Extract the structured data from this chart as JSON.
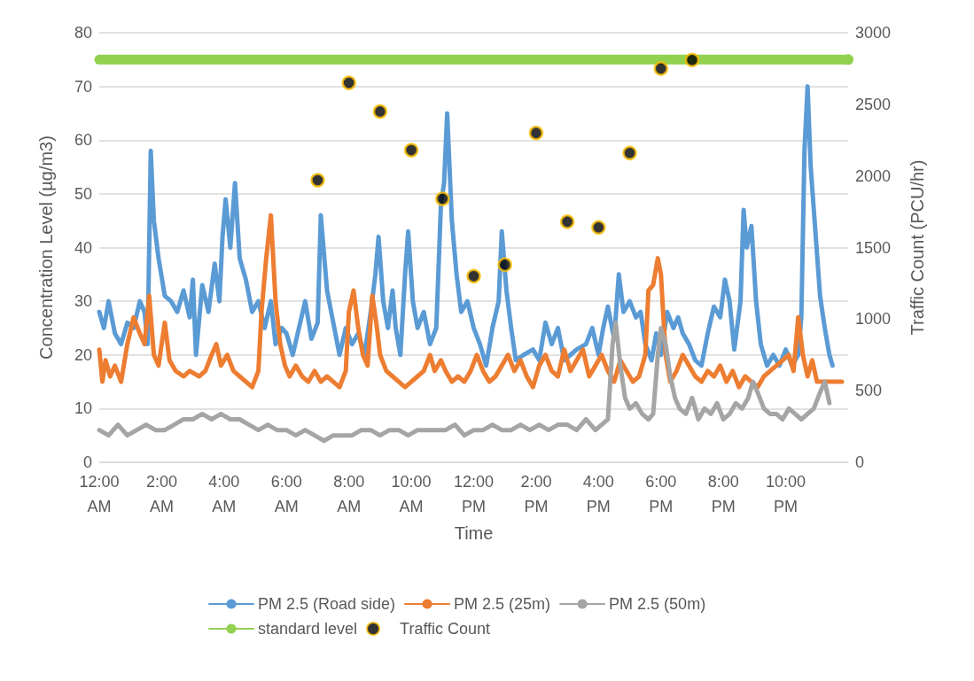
{
  "chart_data": {
    "type": "line",
    "xlabel": "Time",
    "ylabel": "Concentration Level (µg/m3)",
    "y2label": "Traffic Count (PCU/hr)",
    "xlim": [
      0,
      24
    ],
    "xticks": [
      {
        "value": 0,
        "label": "12:00 AM"
      },
      {
        "value": 2,
        "label": "2:00 AM"
      },
      {
        "value": 4,
        "label": "4:00 AM"
      },
      {
        "value": 6,
        "label": "6:00 AM"
      },
      {
        "value": 8,
        "label": "8:00 AM"
      },
      {
        "value": 10,
        "label": "10:00 AM"
      },
      {
        "value": 12,
        "label": "12:00 PM"
      },
      {
        "value": 14,
        "label": "2:00 PM"
      },
      {
        "value": 16,
        "label": "4:00 PM"
      },
      {
        "value": 18,
        "label": "6:00 PM"
      },
      {
        "value": 20,
        "label": "8:00 PM"
      },
      {
        "value": 22,
        "label": "10:00 PM"
      }
    ],
    "ylim": [
      0,
      80
    ],
    "yticks": [
      0,
      10,
      20,
      30,
      40,
      50,
      60,
      70,
      80
    ],
    "y2lim": [
      0,
      3000
    ],
    "y2ticks": [
      0,
      500,
      1000,
      1500,
      2000,
      2500,
      3000
    ],
    "grid": "y",
    "legend": "bottom",
    "line_style": "solid",
    "series": [
      {
        "name": "PM 2.5 (Road side)",
        "color": "#5b9bd5",
        "marker": "none",
        "x": [
          0.0,
          0.15,
          0.3,
          0.5,
          0.7,
          0.9,
          1.1,
          1.3,
          1.45,
          1.55,
          1.65,
          1.75,
          1.9,
          2.1,
          2.3,
          2.5,
          2.7,
          2.9,
          3.0,
          3.1,
          3.3,
          3.5,
          3.7,
          3.85,
          3.95,
          4.05,
          4.2,
          4.35,
          4.5,
          4.7,
          4.9,
          5.1,
          5.3,
          5.5,
          5.65,
          5.85,
          6.0,
          6.2,
          6.4,
          6.6,
          6.8,
          7.0,
          7.1,
          7.3,
          7.5,
          7.7,
          7.9,
          8.1,
          8.3,
          8.5,
          8.7,
          8.85,
          8.95,
          9.1,
          9.25,
          9.4,
          9.5,
          9.65,
          9.8,
          9.9,
          10.05,
          10.2,
          10.4,
          10.6,
          10.8,
          10.95,
          11.05,
          11.15,
          11.3,
          11.45,
          11.6,
          11.8,
          12.0,
          12.2,
          12.4,
          12.6,
          12.8,
          12.9,
          13.05,
          13.2,
          13.35,
          13.6,
          13.9,
          14.1,
          14.3,
          14.5,
          14.7,
          14.9,
          15.1,
          15.3,
          15.6,
          15.8,
          16.0,
          16.15,
          16.3,
          16.5,
          16.65,
          16.8,
          17.0,
          17.2,
          17.35,
          17.5,
          17.7,
          17.85,
          18.0,
          18.2,
          18.4,
          18.55,
          18.7,
          18.9,
          19.1,
          19.3,
          19.5,
          19.7,
          19.9,
          20.05,
          20.2,
          20.35,
          20.55,
          20.65,
          20.75,
          20.9,
          21.05,
          21.2,
          21.4,
          21.6,
          21.8,
          22.0,
          22.2,
          22.4,
          22.5,
          22.6,
          22.7,
          22.8,
          22.95,
          23.1,
          23.25,
          23.4,
          23.5
        ],
        "values": [
          28,
          25,
          30,
          24,
          22,
          26,
          25,
          30,
          28,
          22,
          58,
          45,
          38,
          31,
          30,
          28,
          32,
          27,
          34,
          20,
          33,
          28,
          37,
          30,
          42,
          49,
          40,
          52,
          38,
          34,
          28,
          30,
          25,
          30,
          22,
          25,
          24,
          20,
          25,
          30,
          23,
          26,
          46,
          32,
          26,
          20,
          25,
          22,
          24,
          20,
          28,
          35,
          42,
          30,
          25,
          32,
          25,
          20,
          35,
          43,
          30,
          25,
          28,
          22,
          25,
          48,
          52,
          65,
          45,
          35,
          28,
          30,
          25,
          22,
          18,
          25,
          30,
          43,
          32,
          25,
          19,
          20,
          21,
          19,
          26,
          22,
          25,
          19,
          20,
          21,
          22,
          25,
          20,
          25,
          29,
          23,
          35,
          28,
          30,
          27,
          28,
          22,
          19,
          24,
          20,
          28,
          25,
          27,
          24,
          22,
          19,
          18,
          24,
          29,
          27,
          34,
          30,
          21,
          30,
          47,
          40,
          44,
          30,
          22,
          18,
          20,
          18,
          21,
          18,
          20,
          27,
          58,
          70,
          55,
          43,
          31,
          25,
          20,
          18
        ]
      },
      {
        "name": "PM 2.5 (25m)",
        "color": "#ed7d31",
        "marker": "none",
        "x": [
          0.0,
          0.1,
          0.2,
          0.35,
          0.5,
          0.7,
          0.9,
          1.1,
          1.3,
          1.45,
          1.6,
          1.75,
          1.9,
          2.1,
          2.25,
          2.45,
          2.7,
          2.9,
          3.2,
          3.4,
          3.6,
          3.75,
          3.9,
          4.1,
          4.3,
          4.5,
          4.7,
          4.9,
          5.1,
          5.2,
          5.35,
          5.5,
          5.65,
          5.8,
          5.95,
          6.1,
          6.3,
          6.5,
          6.7,
          6.9,
          7.1,
          7.3,
          7.5,
          7.7,
          7.9,
          8.0,
          8.15,
          8.3,
          8.45,
          8.6,
          8.75,
          8.9,
          9.0,
          9.2,
          9.4,
          9.6,
          9.8,
          10.0,
          10.2,
          10.4,
          10.6,
          10.75,
          10.95,
          11.1,
          11.3,
          11.5,
          11.7,
          11.9,
          12.1,
          12.3,
          12.5,
          12.7,
          12.9,
          13.1,
          13.3,
          13.5,
          13.7,
          13.9,
          14.1,
          14.3,
          14.5,
          14.7,
          14.9,
          15.1,
          15.3,
          15.5,
          15.7,
          15.9,
          16.1,
          16.3,
          16.5,
          16.7,
          16.9,
          17.1,
          17.3,
          17.5,
          17.6,
          17.75,
          17.9,
          18.0,
          18.15,
          18.3,
          18.5,
          18.7,
          18.9,
          19.1,
          19.3,
          19.5,
          19.7,
          19.9,
          20.1,
          20.3,
          20.5,
          20.7,
          20.9,
          21.1,
          21.3,
          21.5,
          21.7,
          21.9,
          22.1,
          22.25,
          22.4,
          22.55,
          22.7,
          22.85,
          23.0,
          23.2,
          23.5,
          23.8
        ],
        "values": [
          21,
          15,
          19,
          16,
          18,
          15,
          22,
          27,
          24,
          22,
          31,
          20,
          18,
          26,
          19,
          17,
          16,
          17,
          16,
          17,
          20,
          22,
          18,
          20,
          17,
          16,
          15,
          14,
          17,
          28,
          38,
          46,
          30,
          22,
          18,
          16,
          18,
          16,
          15,
          17,
          15,
          16,
          15,
          14,
          17,
          28,
          32,
          25,
          20,
          18,
          31,
          25,
          20,
          17,
          16,
          15,
          14,
          15,
          16,
          17,
          20,
          17,
          19,
          17,
          15,
          16,
          15,
          17,
          20,
          17,
          15,
          16,
          18,
          20,
          17,
          19,
          16,
          14,
          18,
          20,
          17,
          16,
          21,
          17,
          19,
          21,
          16,
          18,
          20,
          17,
          15,
          19,
          17,
          15,
          16,
          20,
          32,
          33,
          38,
          35,
          20,
          15,
          17,
          20,
          18,
          16,
          15,
          17,
          16,
          18,
          15,
          17,
          14,
          16,
          15,
          14,
          16,
          17,
          18,
          19,
          20,
          17,
          27,
          20,
          16,
          19,
          15,
          15,
          15,
          15
        ]
      },
      {
        "name": "PM 2.5 (50m)",
        "color": "#a5a5a5",
        "marker": "none",
        "x": [
          0.0,
          0.3,
          0.6,
          0.9,
          1.2,
          1.5,
          1.8,
          2.1,
          2.4,
          2.7,
          3.0,
          3.3,
          3.6,
          3.9,
          4.2,
          4.5,
          4.8,
          5.1,
          5.4,
          5.7,
          6.0,
          6.3,
          6.6,
          6.9,
          7.2,
          7.5,
          7.8,
          8.1,
          8.4,
          8.7,
          9.0,
          9.3,
          9.6,
          9.9,
          10.2,
          10.5,
          10.8,
          11.1,
          11.4,
          11.7,
          12.0,
          12.3,
          12.6,
          12.9,
          13.2,
          13.5,
          13.8,
          14.1,
          14.4,
          14.7,
          15.0,
          15.3,
          15.6,
          15.9,
          16.1,
          16.3,
          16.45,
          16.55,
          16.7,
          16.85,
          17.0,
          17.2,
          17.4,
          17.6,
          17.75,
          17.9,
          18.0,
          18.15,
          18.3,
          18.45,
          18.6,
          18.8,
          19.0,
          19.2,
          19.4,
          19.6,
          19.8,
          20.0,
          20.2,
          20.4,
          20.6,
          20.8,
          20.95,
          21.1,
          21.3,
          21.5,
          21.7,
          21.9,
          22.1,
          22.3,
          22.5,
          22.7,
          22.9,
          23.1,
          23.25,
          23.4
        ],
        "values": [
          6,
          5,
          7,
          5,
          6,
          7,
          6,
          6,
          7,
          8,
          8,
          9,
          8,
          9,
          8,
          8,
          7,
          6,
          7,
          6,
          6,
          5,
          6,
          5,
          4,
          5,
          5,
          5,
          6,
          6,
          5,
          6,
          6,
          5,
          6,
          6,
          6,
          6,
          7,
          5,
          6,
          6,
          7,
          6,
          6,
          7,
          6,
          7,
          6,
          7,
          7,
          6,
          8,
          6,
          7,
          8,
          22,
          26,
          18,
          12,
          10,
          11,
          9,
          8,
          9,
          20,
          25,
          22,
          16,
          12,
          10,
          9,
          12,
          8,
          10,
          9,
          11,
          8,
          9,
          11,
          10,
          12,
          15,
          13,
          10,
          9,
          9,
          8,
          10,
          9,
          8,
          9,
          10,
          13,
          15,
          11
        ]
      },
      {
        "name": "standard level",
        "color": "#92d050",
        "marker": "circle",
        "x": [
          0,
          24
        ],
        "values": [
          75,
          75
        ]
      },
      {
        "name": "Traffic Count",
        "color": "#ffc000",
        "type": "scatter",
        "marker": "circle",
        "axis": "y2",
        "x": [
          7,
          8,
          9,
          10,
          11,
          12,
          13,
          14,
          15,
          16,
          17,
          18,
          19
        ],
        "values": [
          1970,
          2650,
          2450,
          2180,
          1840,
          1300,
          1380,
          2300,
          1680,
          1640,
          2160,
          2750,
          2810
        ]
      }
    ]
  }
}
